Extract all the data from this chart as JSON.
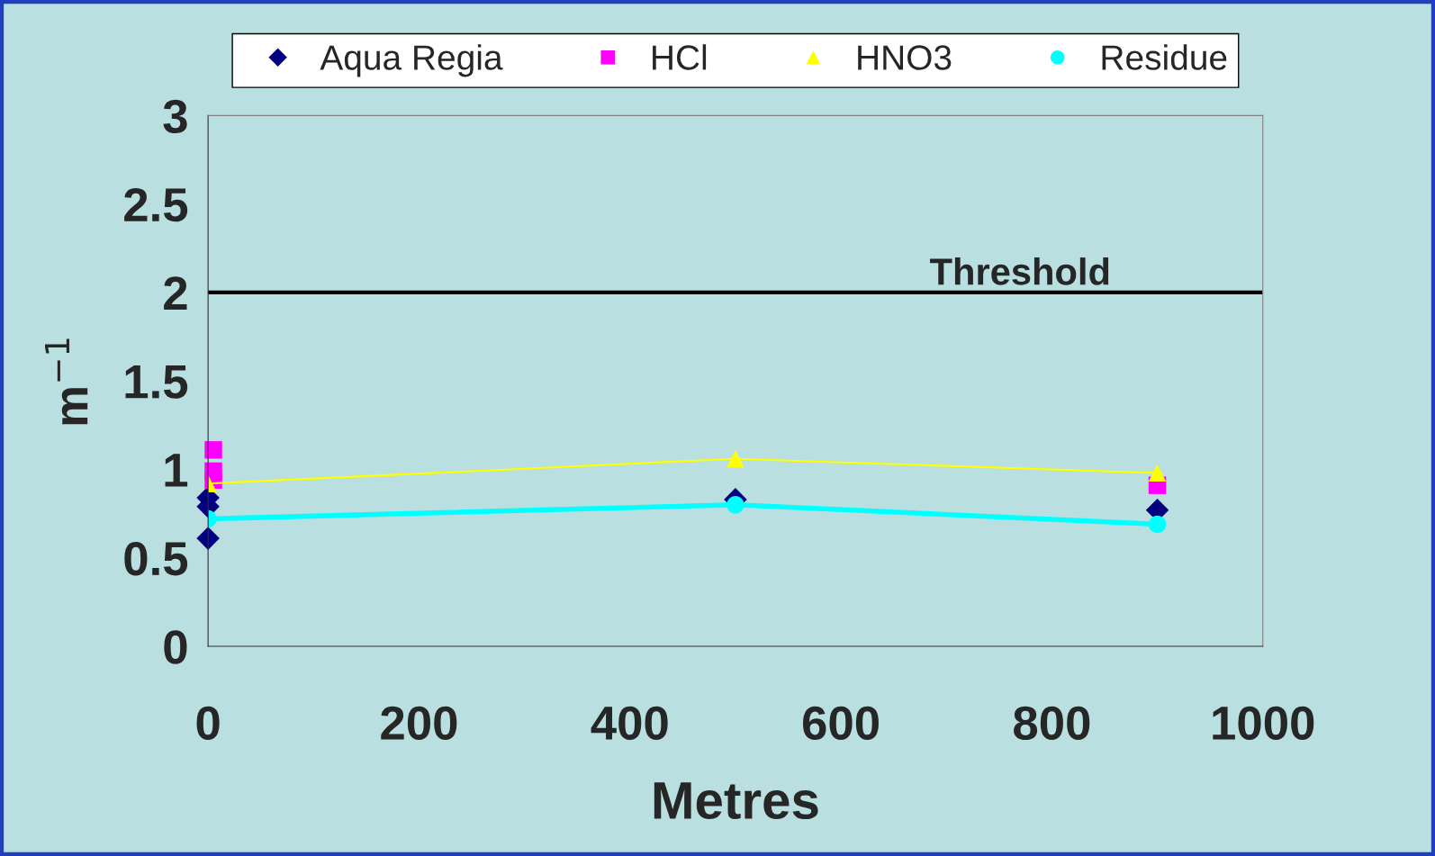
{
  "chart_data": {
    "type": "line",
    "xlabel": "Metres",
    "ylabel": "m$^{−1}$",
    "xlim": [
      0,
      1000
    ],
    "xticks": [
      0,
      200,
      400,
      600,
      800,
      1000
    ],
    "ylim": [
      0,
      3
    ],
    "yticks": [
      0,
      0.5,
      1,
      1.5,
      2,
      2.5,
      3
    ],
    "grid": false,
    "legend": "top",
    "series": [
      {
        "name": "Aqua Regia",
        "type": "scatter",
        "marker": "diamond",
        "color": "#000080",
        "x": [
          0,
          0,
          0,
          500,
          900
        ],
        "values": [
          0.84,
          0.79,
          0.61,
          0.83,
          0.77
        ]
      },
      {
        "name": "HCl",
        "type": "scatter",
        "marker": "square",
        "color": "#ff00ff",
        "x": [
          5,
          5,
          5,
          900
        ],
        "values": [
          1.11,
          0.99,
          0.94,
          0.91
        ]
      },
      {
        "name": "HNO3",
        "marker": "triangle",
        "line_style": "solid",
        "color": "#ffff00",
        "x": [
          0,
          500,
          900
        ],
        "values": [
          0.92,
          1.06,
          0.98
        ]
      },
      {
        "name": "Residue",
        "marker": "circle",
        "line_style": "solid",
        "color": "#00ffff",
        "x": [
          0,
          500,
          900
        ],
        "values": [
          0.72,
          0.8,
          0.69
        ]
      }
    ],
    "ref_lines": [
      {
        "axis": "y",
        "value": 2,
        "label": "Threshold",
        "color": "#000000",
        "line_style": "solid"
      }
    ]
  }
}
